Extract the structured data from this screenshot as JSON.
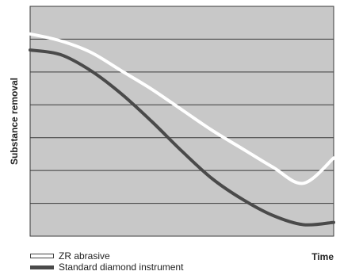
{
  "chart_data": {
    "type": "line",
    "title": "",
    "xlabel": "Time",
    "ylabel": "Substance removal",
    "xlim": [
      0,
      1
    ],
    "ylim": [
      0,
      1
    ],
    "grid": true,
    "legend_position": "bottom-left",
    "background_color": "#c8c8c8",
    "grid_color": "#3a3a3a",
    "series": [
      {
        "name": "ZR abrasive",
        "color": "#ffffff",
        "x": [
          0,
          0.1,
          0.2,
          0.3,
          0.4,
          0.5,
          0.6,
          0.7,
          0.8,
          0.9,
          1.0
        ],
        "y": [
          0.88,
          0.85,
          0.8,
          0.72,
          0.64,
          0.55,
          0.46,
          0.38,
          0.3,
          0.23,
          0.34
        ]
      },
      {
        "name": "Standard diamond instrument",
        "color": "#4a4a4a",
        "x": [
          0,
          0.1,
          0.2,
          0.3,
          0.4,
          0.5,
          0.6,
          0.7,
          0.8,
          0.9,
          1.0
        ],
        "y": [
          0.81,
          0.79,
          0.72,
          0.62,
          0.5,
          0.37,
          0.25,
          0.16,
          0.09,
          0.05,
          0.06
        ]
      }
    ]
  }
}
